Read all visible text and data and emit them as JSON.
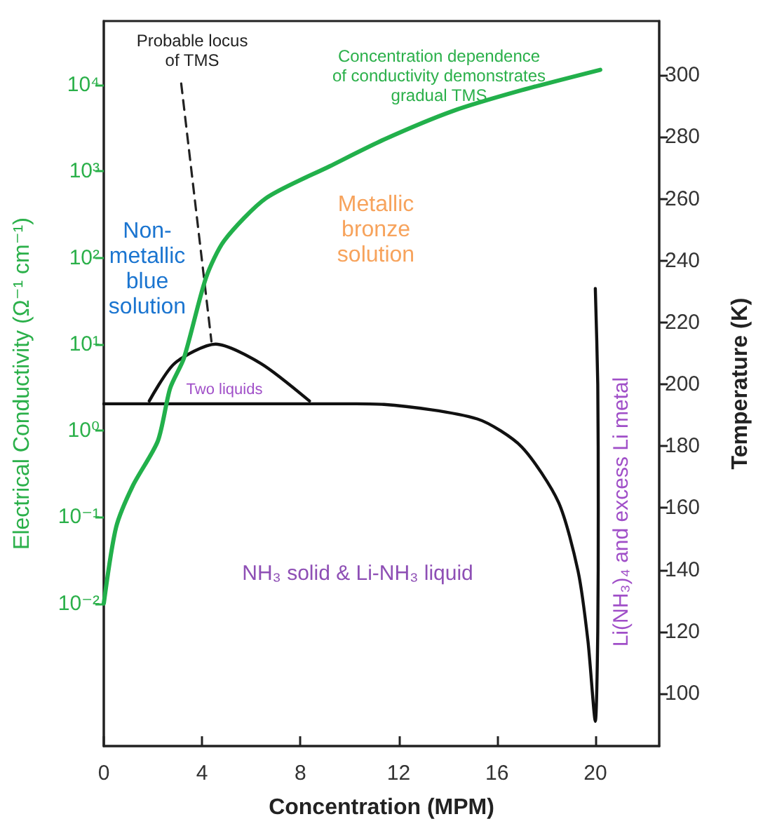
{
  "chart_data": {
    "type": "line",
    "xlabel": "Concentration (MPM)",
    "ylabel": "Electrical Conductivity (Ω⁻¹ cm⁻¹)",
    "y2label": "Temperature (K)",
    "xlim": [
      0,
      22.6
    ],
    "xticks": [
      0,
      4,
      8,
      12,
      16,
      20
    ],
    "log": "y",
    "ylim": [
      0.000224,
      55000
    ],
    "yticks": [
      {
        "value": 0.01,
        "label": "10⁻²"
      },
      {
        "value": 0.1,
        "label": "10⁻¹"
      },
      {
        "value": 1,
        "label": "10⁰"
      },
      {
        "value": 10,
        "label": "10¹"
      },
      {
        "value": 100,
        "label": "10²"
      },
      {
        "value": 1000,
        "label": "10³"
      },
      {
        "value": 10000,
        "label": "10⁴"
      }
    ],
    "y2lim": [
      83,
      317.5
    ],
    "y2ticks": [
      100,
      120,
      140,
      160,
      180,
      200,
      220,
      240,
      260,
      280,
      300
    ],
    "marker": "none",
    "series": [
      {
        "color": "#22b04b",
        "x": [
          0,
          0.5,
          1.18,
          2.2,
          2.7,
          3.26,
          4.16,
          4.9,
          6.6,
          9.2,
          11.4,
          14.2,
          17.0,
          20.2
        ],
        "values": [
          0.01,
          0.076,
          0.23,
          0.76,
          3.1,
          6.9,
          59,
          158,
          490,
          1150,
          2340,
          5000,
          8700,
          15000
        ]
      },
      {
        "color": "#222222",
        "axis": "y2",
        "line_style": "dashed",
        "x": [
          3.15,
          4.38
        ],
        "values": [
          297.3,
          213.9
        ]
      },
      {
        "color": "#111111",
        "axis": "y2",
        "x": [
          0,
          5,
          10,
          11.4,
          15.2,
          17.0,
          18.5,
          19.3,
          19.7,
          20.0,
          20.1,
          20.12,
          20.1,
          20.0
        ],
        "values": [
          193.7,
          193.7,
          193.7,
          193.5,
          188.8,
          179.8,
          161.9,
          139.5,
          117,
          91,
          120,
          160,
          200,
          231
        ]
      },
      {
        "color": "#111111",
        "axis": "y2",
        "x": [
          1.85,
          2.87,
          4.55,
          6.4,
          8.37
        ],
        "values": [
          194.6,
          206.7,
          213,
          206.7,
          194.6
        ]
      }
    ],
    "annotations": [
      "Probable locus\nof TMS",
      "Concentration dependence\nof conductivity demonstrates\ngradual TMS",
      "Non-\nmetallic\nblue\nsolution",
      "Metallic\nbronze\nsolution",
      "Two liquids",
      "NH₃ solid & Li-NH₃ liquid",
      "Li(NH₃)₄ and excess Li metal"
    ]
  }
}
